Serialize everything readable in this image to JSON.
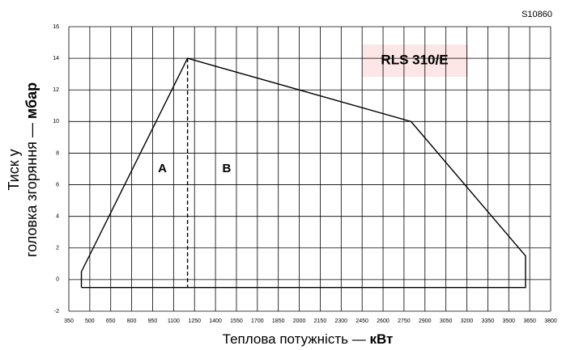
{
  "chart_data": {
    "type": "line",
    "code": "S10860",
    "model": "RLS 310/E",
    "x_label": {
      "text": "Теплова потужність — ",
      "unit": "кВт"
    },
    "y_label": {
      "line1": "Тиск у",
      "text": "головка згоряння — ",
      "unit": "мбар"
    },
    "x": [
      440,
      440,
      1200,
      2800,
      3620,
      3620,
      440
    ],
    "values": [
      -0.5,
      0.5,
      14,
      10,
      1.5,
      -0.5,
      -0.5
    ],
    "color": "#000000",
    "divider": {
      "x": [
        1200,
        1200
      ],
      "values": [
        14,
        -0.5
      ]
    },
    "annotations": [
      {
        "text": "A",
        "x": 1020,
        "y": 7
      },
      {
        "text": "B",
        "x": 1480,
        "y": 7
      }
    ],
    "xlim": [
      350,
      3800
    ],
    "xticks": [
      350,
      500,
      650,
      800,
      950,
      1100,
      1250,
      1400,
      1550,
      1700,
      1850,
      2000,
      2150,
      2300,
      2450,
      2600,
      2750,
      2900,
      3050,
      3200,
      3350,
      3500,
      3650,
      3800
    ],
    "ylim": [
      -2,
      16
    ],
    "yticks": [
      -2,
      0,
      2,
      4,
      6,
      8,
      10,
      12,
      14,
      16
    ],
    "grid": true
  }
}
